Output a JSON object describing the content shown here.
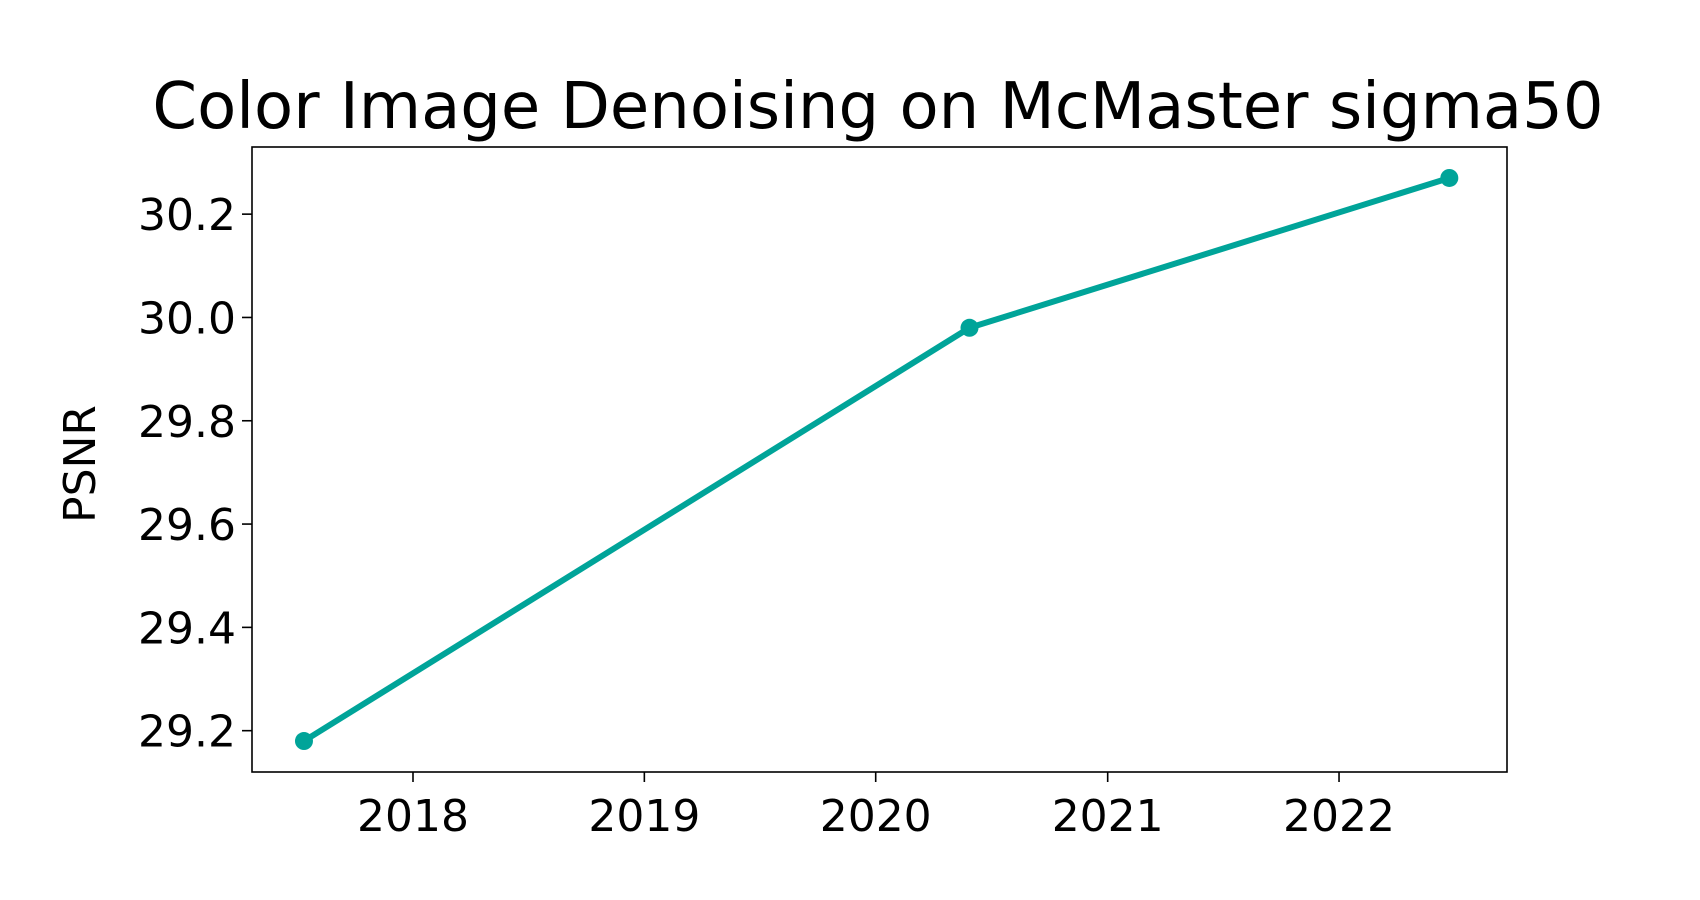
{
  "chart_data": {
    "type": "line",
    "title": "Color Image Denoising on McMaster sigma50",
    "xlabel": "",
    "ylabel": "PSNR",
    "x_ticks": [
      "2018",
      "2019",
      "2020",
      "2021",
      "2022"
    ],
    "y_ticks": [
      "29.2",
      "29.4",
      "29.6",
      "29.8",
      "30.0",
      "30.2"
    ],
    "xlim": [
      "2017-04-22",
      "2022-09-23"
    ],
    "ylim": [
      29.12,
      30.33
    ],
    "grid": false,
    "series": [
      {
        "color": "#00a499",
        "marker": "circle",
        "points": [
          {
            "x": "2017-07-13",
            "y": 29.18
          },
          {
            "x": "2020-05-28",
            "y": 29.98
          },
          {
            "x": "2022-06-24",
            "y": 30.27
          }
        ]
      }
    ]
  }
}
